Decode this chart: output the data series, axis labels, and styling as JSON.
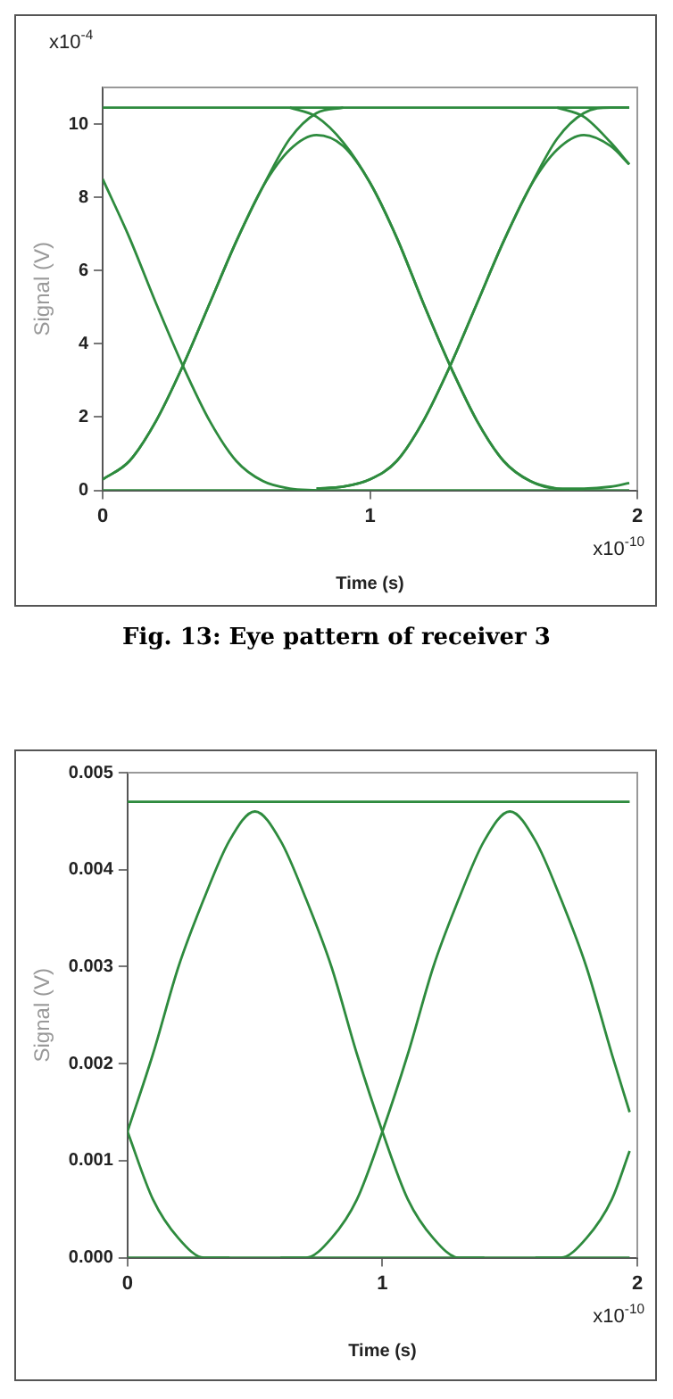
{
  "chart_data": [
    {
      "type": "line",
      "xlabel": "Time (s)",
      "ylabel": "Signal (V)",
      "xlim": [
        0,
        2
      ],
      "xticks": [
        0,
        1,
        2
      ],
      "ylim": [
        0,
        11
      ],
      "yticks": [
        0,
        2,
        4,
        6,
        8,
        10
      ],
      "grid": false,
      "legend": false,
      "marker": "none",
      "line_style": "solid",
      "title": "Fig. 13: Eye pattern of receiver 3",
      "annotations": [
        "x10$^{-4}$",
        "x10$^{-10}$"
      ],
      "series": [
        {
          "color": "#2e8b3e",
          "x": [
            0,
            0.5,
            1,
            1.5,
            1.97
          ],
          "values": [
            10.45,
            10.45,
            10.45,
            10.45,
            10.45
          ]
        },
        {
          "color": "#2e8b3e",
          "x": [
            0,
            0.5,
            1,
            1.5,
            1.97
          ],
          "values": [
            0,
            0,
            0,
            0,
            0
          ]
        },
        {
          "color": "#2e8b3e",
          "x": [
            0,
            0.1,
            0.2,
            0.3,
            0.4,
            0.5,
            0.6,
            0.7,
            0.8
          ],
          "values": [
            8.5,
            6.9,
            5.1,
            3.4,
            1.9,
            0.8,
            0.25,
            0.05,
            0
          ]
        },
        {
          "color": "#2e8b3e",
          "x": [
            0,
            0.1,
            0.2,
            0.3,
            0.4,
            0.5,
            0.6,
            0.7,
            0.8,
            0.9,
            1.0,
            1.1,
            1.2,
            1.3,
            1.4,
            1.5,
            1.6,
            1.7,
            1.8,
            1.9,
            1.97
          ],
          "values": [
            0.3,
            0.8,
            1.9,
            3.4,
            5.1,
            6.8,
            8.3,
            9.3,
            9.7,
            9.4,
            8.4,
            6.9,
            5.1,
            3.4,
            1.9,
            0.8,
            0.25,
            0.05,
            0.05,
            0.1,
            0.2
          ]
        },
        {
          "color": "#2e8b3e",
          "x": [
            0,
            0.1,
            0.2,
            0.3,
            0.4,
            0.5,
            0.6,
            0.7,
            0.8,
            0.9
          ],
          "values": [
            0.3,
            0.8,
            1.9,
            3.4,
            5.1,
            6.8,
            8.3,
            9.6,
            10.3,
            10.45
          ]
        },
        {
          "color": "#2e8b3e",
          "x": [
            0.7,
            0.8,
            0.9,
            1.0,
            1.1,
            1.2,
            1.3,
            1.4,
            1.5,
            1.6,
            1.7,
            1.8
          ],
          "values": [
            10.45,
            10.2,
            9.5,
            8.4,
            6.9,
            5.1,
            3.4,
            1.9,
            0.8,
            0.25,
            0.05,
            0
          ]
        },
        {
          "color": "#2e8b3e",
          "x": [
            0.8,
            0.9,
            1.0,
            1.1,
            1.2,
            1.3,
            1.4,
            1.5,
            1.6,
            1.7,
            1.8,
            1.9,
            1.97
          ],
          "values": [
            0.05,
            0.1,
            0.3,
            0.8,
            1.9,
            3.4,
            5.1,
            6.8,
            8.3,
            9.3,
            9.7,
            9.4,
            8.9
          ]
        },
        {
          "color": "#2e8b3e",
          "x": [
            0.8,
            0.9,
            1.0,
            1.1,
            1.2,
            1.3,
            1.4,
            1.5,
            1.6,
            1.7,
            1.8,
            1.9,
            1.97
          ],
          "values": [
            0.05,
            0.1,
            0.3,
            0.8,
            1.9,
            3.4,
            5.1,
            6.8,
            8.3,
            9.6,
            10.3,
            10.45,
            10.45
          ]
        },
        {
          "color": "#2e8b3e",
          "x": [
            1.7,
            1.8,
            1.9,
            1.97
          ],
          "values": [
            10.45,
            10.2,
            9.5,
            8.9
          ]
        }
      ]
    },
    {
      "type": "line",
      "xlabel": "Time (s)",
      "ylabel": "Signal (V)",
      "xlim": [
        0,
        2
      ],
      "xticks": [
        0,
        1,
        2
      ],
      "ylim": [
        0,
        0.005
      ],
      "yticks": [
        {
          "value": 0,
          "label": "0.000"
        },
        {
          "value": 0.001,
          "label": "0.001"
        },
        {
          "value": 0.002,
          "label": "0.002"
        },
        {
          "value": 0.003,
          "label": "0.003"
        },
        {
          "value": 0.004,
          "label": "0.004"
        },
        {
          "value": 0.005,
          "label": "0.005"
        }
      ],
      "grid": false,
      "legend": false,
      "marker": "none",
      "line_style": "solid",
      "annotations": [
        "x10$^{-10}$"
      ],
      "series": [
        {
          "color": "#2e8b3e",
          "x": [
            0,
            0.5,
            1,
            1.5,
            1.97
          ],
          "values": [
            0.0047,
            0.0047,
            0.0047,
            0.0047,
            0.0047
          ]
        },
        {
          "color": "#2e8b3e",
          "x": [
            0,
            0.5,
            1,
            1.5,
            1.97
          ],
          "values": [
            0,
            0,
            0,
            0,
            0
          ]
        },
        {
          "color": "#2e8b3e",
          "x": [
            0,
            0.1,
            0.2,
            0.3,
            0.4
          ],
          "values": [
            0.0013,
            0.0006,
            0.0002,
            0,
            0
          ]
        },
        {
          "color": "#2e8b3e",
          "x": [
            0,
            0.1,
            0.2,
            0.3,
            0.4,
            0.5,
            0.6,
            0.7,
            0.8,
            0.9,
            1.0,
            1.1,
            1.2,
            1.3,
            1.4
          ],
          "values": [
            0.0013,
            0.0021,
            0.003,
            0.0037,
            0.0043,
            0.0046,
            0.0043,
            0.0037,
            0.003,
            0.0021,
            0.0013,
            0.0006,
            0.0002,
            0,
            0
          ]
        },
        {
          "color": "#2e8b3e",
          "x": [
            0.6,
            0.7,
            0.8,
            0.9,
            1.0,
            1.1,
            1.2,
            1.3,
            1.4,
            1.5,
            1.6,
            1.7,
            1.8,
            1.9,
            1.97
          ],
          "values": [
            0,
            0,
            0.0002,
            0.0006,
            0.0013,
            0.0021,
            0.003,
            0.0037,
            0.0043,
            0.0046,
            0.0043,
            0.0037,
            0.003,
            0.0021,
            0.0015
          ]
        },
        {
          "color": "#2e8b3e",
          "x": [
            1.6,
            1.7,
            1.8,
            1.9,
            1.97
          ],
          "values": [
            0,
            0,
            0.0002,
            0.0006,
            0.0011
          ]
        }
      ]
    }
  ]
}
